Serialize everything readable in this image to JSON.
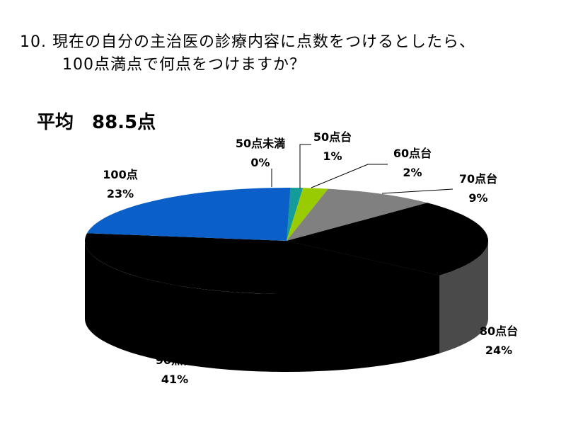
{
  "title": {
    "line1": "10. 現在の自分の主治医の診療内容に点数をつけるとしたら、",
    "line2": "100点満点で何点をつけますか？"
  },
  "average_label": "平均　88.5点",
  "chart_data": {
    "type": "pie",
    "categories": [
      "50点未満",
      "50点台",
      "60点台",
      "70点台",
      "80点台",
      "90点台",
      "100点"
    ],
    "percent_labels": [
      "0%",
      "1%",
      "2%",
      "9%",
      "24%",
      "41%",
      "23%"
    ],
    "values": [
      0,
      1,
      2,
      9,
      24,
      41,
      23
    ],
    "colors": [
      "#1f1f99",
      "#149b9b",
      "#99cc00",
      "#808080",
      "#000000",
      "#000000",
      "#0a5fc8"
    ],
    "side_colors": [
      "#10105a",
      "#0c5e5e",
      "#5c7a00",
      "#4a4a4a",
      "#4a4a4a",
      "#000000",
      "#063a7a"
    ]
  }
}
